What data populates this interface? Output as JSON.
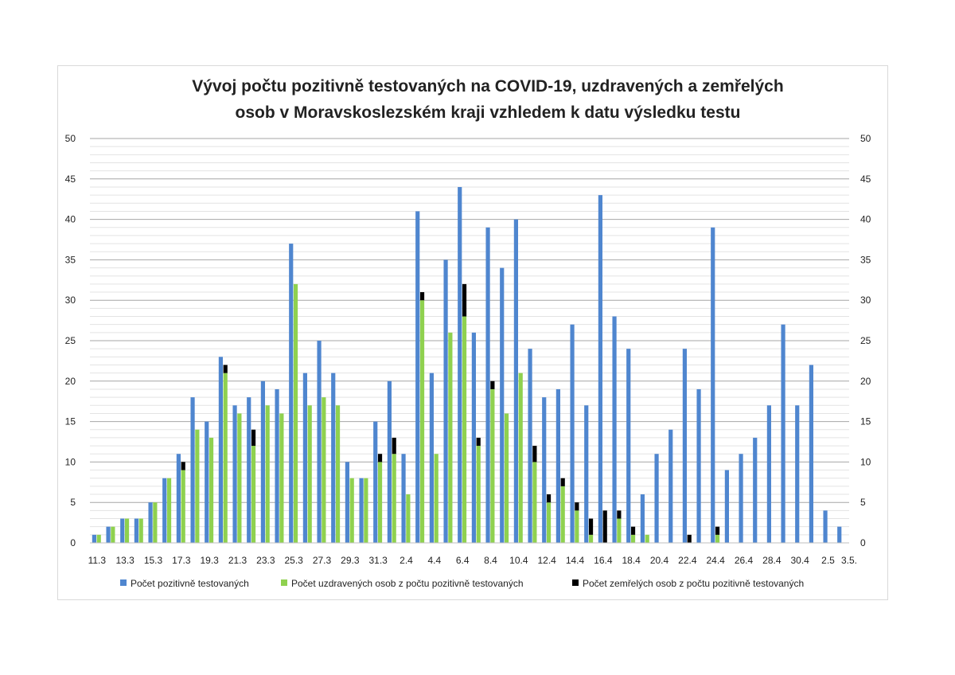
{
  "chart_data": {
    "type": "bar",
    "title_lines": [
      "Vývoj počtu pozitivně testovaných na COVID-19, uzdravených a zemřelých",
      "osob v Moravskoslezském kraji vzhledem k datu výsledku testu"
    ],
    "ylim": [
      0,
      50
    ],
    "y_ticks": [
      0,
      5,
      10,
      15,
      20,
      25,
      30,
      35,
      40,
      45,
      50
    ],
    "grid": true,
    "secondary_y_axis": true,
    "legend_position": "bottom",
    "x_tick_labels": [
      "11.3",
      "13.3",
      "15.3",
      "17.3",
      "19.3",
      "21.3",
      "23.3",
      "25.3",
      "27.3",
      "29.3",
      "31.3",
      "2.4",
      "4.4",
      "6.4",
      "8.4",
      "10.4",
      "12.4",
      "14.4",
      "16.4",
      "18.4",
      "20.4",
      "22.4",
      "24.4",
      "26.4",
      "28.4",
      "30.4",
      "2.5",
      "3.5."
    ],
    "category_count": 54,
    "series": [
      {
        "name": "Počet pozitivně testovaných",
        "color": "#4f86cf",
        "values": [
          1,
          2,
          3,
          3,
          5,
          8,
          11,
          18,
          15,
          23,
          17,
          18,
          20,
          19,
          37,
          21,
          25,
          21,
          10,
          8,
          15,
          20,
          11,
          41,
          21,
          35,
          44,
          26,
          39,
          34,
          40,
          24,
          18,
          19,
          27,
          17,
          43,
          28,
          24,
          6,
          11,
          14,
          24,
          19,
          39,
          9,
          11,
          13,
          17,
          27,
          17,
          22,
          4,
          2
        ]
      },
      {
        "name": "Počet uzdravených osob z počtu pozitivně testovaných",
        "color": "#8fd14f",
        "values": [
          1,
          2,
          3,
          3,
          5,
          8,
          9,
          14,
          13,
          21,
          16,
          12,
          17,
          16,
          32,
          17,
          18,
          17,
          8,
          8,
          10,
          11,
          6,
          30,
          11,
          26,
          28,
          12,
          19,
          16,
          21,
          10,
          5,
          7,
          4,
          1,
          0,
          3,
          1,
          1,
          0,
          0,
          0,
          0,
          1,
          0,
          0,
          0,
          0,
          0,
          0,
          0,
          0,
          0
        ]
      },
      {
        "name": "Počet zemřelých osob z počtu pozitivně testovaných",
        "color": "#000000",
        "values": [
          0,
          0,
          0,
          0,
          0,
          0,
          1,
          0,
          0,
          1,
          0,
          2,
          0,
          0,
          0,
          0,
          0,
          0,
          0,
          0,
          1,
          2,
          0,
          1,
          0,
          0,
          4,
          1,
          1,
          0,
          0,
          2,
          1,
          1,
          1,
          2,
          4,
          1,
          1,
          0,
          0,
          0,
          1,
          0,
          1,
          0,
          0,
          0,
          0,
          0,
          0,
          0,
          0,
          0
        ]
      }
    ]
  }
}
